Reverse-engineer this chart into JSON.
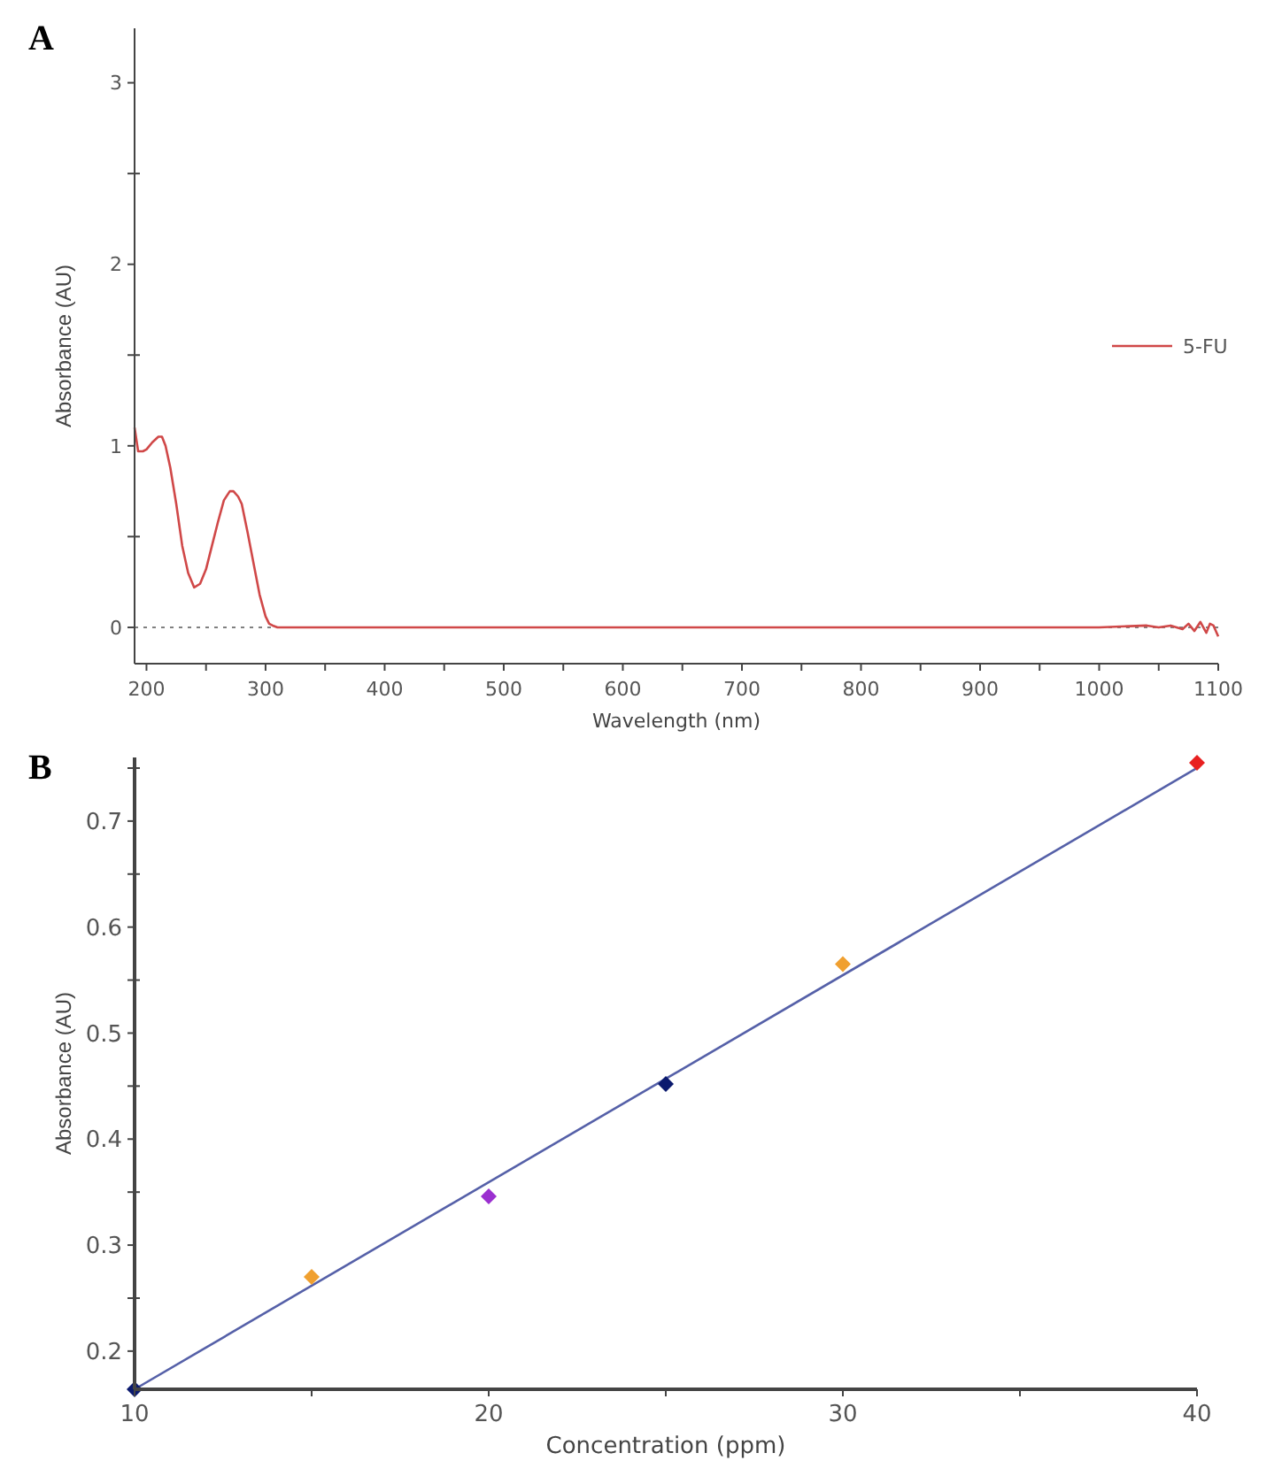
{
  "chart_data": [
    {
      "type": "line",
      "title": "A",
      "xlabel": "Wavelength (nm)",
      "ylabel": "Absorbance (AU)",
      "legend": "right",
      "x": [
        190,
        193,
        197,
        200,
        205,
        210,
        213,
        216,
        220,
        225,
        230,
        235,
        240,
        245,
        250,
        255,
        260,
        265,
        270,
        273,
        277,
        280,
        285,
        290,
        295,
        300,
        303,
        306,
        310,
        350,
        400,
        500,
        600,
        700,
        800,
        900,
        1000,
        1040,
        1050,
        1060,
        1070,
        1075,
        1080,
        1085,
        1090,
        1093,
        1096,
        1100
      ],
      "series": [
        {
          "name": "5-FU",
          "color": "#d04848",
          "values": [
            1.1,
            0.97,
            0.97,
            0.98,
            1.02,
            1.05,
            1.05,
            1.0,
            0.88,
            0.68,
            0.45,
            0.3,
            0.22,
            0.24,
            0.32,
            0.45,
            0.58,
            0.7,
            0.75,
            0.75,
            0.72,
            0.68,
            0.52,
            0.35,
            0.18,
            0.06,
            0.02,
            0.01,
            0,
            0,
            0,
            0,
            0,
            0,
            0,
            0,
            0,
            0.01,
            0,
            0.01,
            -0.01,
            0.02,
            -0.02,
            0.03,
            -0.03,
            0.02,
            0.01,
            -0.05
          ]
        }
      ],
      "xlim": [
        190,
        1100
      ],
      "ylim": [
        -0.2,
        3.3
      ],
      "xticks": [
        200,
        {
          "value": 250,
          "label": null
        },
        300,
        {
          "value": 350,
          "label": null
        },
        400,
        {
          "value": 450,
          "label": null
        },
        500,
        {
          "value": 550,
          "label": null
        },
        600,
        {
          "value": 650,
          "label": null
        },
        700,
        {
          "value": 750,
          "label": null
        },
        800,
        {
          "value": 850,
          "label": null
        },
        900,
        {
          "value": 950,
          "label": null
        },
        1000,
        {
          "value": 1050,
          "label": null
        },
        1100
      ],
      "yticks": [
        0,
        {
          "value": 0.5,
          "label": null
        },
        1,
        {
          "value": 1.5,
          "label": null
        },
        2,
        {
          "value": 2.5,
          "label": null
        },
        3
      ],
      "ref_lines": [
        {
          "axis": "y",
          "value": 0,
          "color": "#808080",
          "line_style": "dotted"
        }
      ]
    },
    {
      "type": "scatter",
      "title": "B",
      "xlabel": "Concentration (ppm)",
      "ylabel": "Absorbance (AU)",
      "legend": false,
      "series": [
        {
          "marker": "diamond",
          "x": [
            10,
            15,
            20,
            25,
            30,
            40
          ],
          "values": [
            0.164,
            0.27,
            0.346,
            0.452,
            0.565,
            0.755
          ],
          "colors": [
            "#0b1a6e",
            "#f0a030",
            "#9b30d0",
            "#0b1a6e",
            "#f0a030",
            "#e82020"
          ]
        },
        {
          "type": "line",
          "color": "#5560a8",
          "x": [
            10,
            40
          ],
          "values": [
            0.164,
            0.75
          ]
        }
      ],
      "xlim": [
        10,
        40
      ],
      "ylim": [
        0.164,
        0.76
      ],
      "xticks": [
        10,
        {
          "value": 15,
          "label": null
        },
        20,
        {
          "value": 25,
          "label": null
        },
        30,
        {
          "value": 35,
          "label": null
        },
        40
      ],
      "yticks": [
        0.2,
        {
          "value": 0.25,
          "label": null
        },
        0.3,
        {
          "value": 0.35,
          "label": null
        },
        0.4,
        {
          "value": 0.45,
          "label": null
        },
        0.5,
        {
          "value": 0.55,
          "label": null
        },
        0.6,
        {
          "value": 0.65,
          "label": null
        },
        0.7,
        {
          "value": 0.75,
          "label": null
        }
      ]
    }
  ]
}
